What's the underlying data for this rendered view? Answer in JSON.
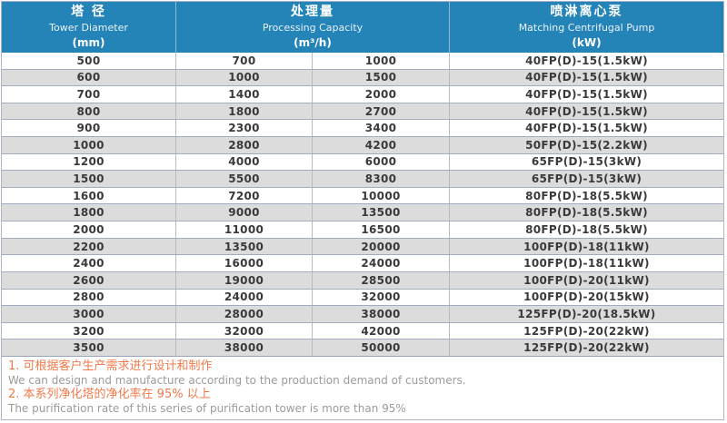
{
  "table": {
    "columns": [
      {
        "zh": "塔 径",
        "en": "Tower Diameter",
        "unit": "(mm)"
      },
      {
        "zh": "处理量",
        "en": "Processing Capacity",
        "unit": "(m³/h)"
      },
      {
        "zh": "喷淋离心泵",
        "en": "Matching Centrifugal Pump",
        "unit": "(kW)"
      }
    ],
    "rows": [
      {
        "diameter": "500",
        "capacity_min": "700",
        "capacity_max": "1000",
        "pump": "40FP(D)-15(1.5kW)"
      },
      {
        "diameter": "600",
        "capacity_min": "1000",
        "capacity_max": "1500",
        "pump": "40FP(D)-15(1.5kW)"
      },
      {
        "diameter": "700",
        "capacity_min": "1400",
        "capacity_max": "2000",
        "pump": "40FP(D)-15(1.5kW)"
      },
      {
        "diameter": "800",
        "capacity_min": "1800",
        "capacity_max": "2700",
        "pump": "40FP(D)-15(1.5kW)"
      },
      {
        "diameter": "900",
        "capacity_min": "2300",
        "capacity_max": "3400",
        "pump": "40FP(D)-15(1.5kW)"
      },
      {
        "diameter": "1000",
        "capacity_min": "2800",
        "capacity_max": "4200",
        "pump": "50FP(D)-15(2.2kW)"
      },
      {
        "diameter": "1200",
        "capacity_min": "4000",
        "capacity_max": "6000",
        "pump": "65FP(D)-15(3kW)"
      },
      {
        "diameter": "1500",
        "capacity_min": "5500",
        "capacity_max": "8300",
        "pump": "65FP(D)-15(3kW)"
      },
      {
        "diameter": "1600",
        "capacity_min": "7200",
        "capacity_max": "10000",
        "pump": "80FP(D)-18(5.5kW)"
      },
      {
        "diameter": "1800",
        "capacity_min": "9000",
        "capacity_max": "13500",
        "pump": "80FP(D)-18(5.5kW)"
      },
      {
        "diameter": "2000",
        "capacity_min": "11000",
        "capacity_max": "16500",
        "pump": "80FP(D)-18(5.5kW)"
      },
      {
        "diameter": "2200",
        "capacity_min": "13500",
        "capacity_max": "20000",
        "pump": "100FP(D)-18(11kW)"
      },
      {
        "diameter": "2400",
        "capacity_min": "16000",
        "capacity_max": "24000",
        "pump": "100FP(D)-18(11kW)"
      },
      {
        "diameter": "2600",
        "capacity_min": "19000",
        "capacity_max": "28500",
        "pump": "100FP(D)-20(11kW)"
      },
      {
        "diameter": "2800",
        "capacity_min": "24000",
        "capacity_max": "32000",
        "pump": "100FP(D)-20(15kW)"
      },
      {
        "diameter": "3000",
        "capacity_min": "28000",
        "capacity_max": "38000",
        "pump": "125FP(D)-20(18.5kW)"
      },
      {
        "diameter": "3200",
        "capacity_min": "32000",
        "capacity_max": "42000",
        "pump": "125FP(D)-20(22kW)"
      },
      {
        "diameter": "3500",
        "capacity_min": "38000",
        "capacity_max": "50000",
        "pump": "125FP(D)-20(22kW)"
      }
    ]
  },
  "notes": [
    {
      "zh": "1. 可根据客户生产需求进行设计和制作",
      "en": "We can design and manufacture according to the production demand of customers."
    },
    {
      "zh": "2. 本系列净化塔的净化率在 95% 以上",
      "en": "The purification rate of this series of purification tower is more than 95%"
    }
  ],
  "colors": {
    "header_bg": "#2484b7",
    "row_alt": "#dcdcdc",
    "note_orange": "#f07a4b",
    "note_gray": "#9b9b9b"
  }
}
